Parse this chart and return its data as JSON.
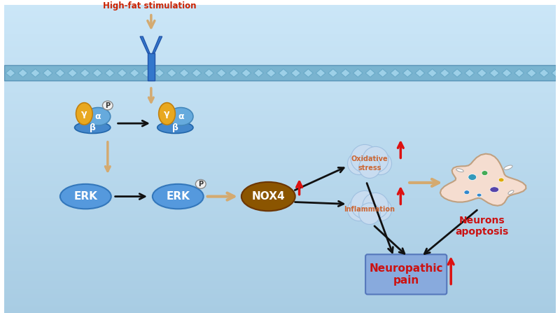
{
  "bg_color": "#c5dff0",
  "membrane_color": "#7ab4d0",
  "membrane_edge": "#5a94b8",
  "diamond_color": "#9dd0e8",
  "diamond_edge": "#6aaac8",
  "receptor_color": "#3377cc",
  "receptor_edge": "#2255aa",
  "ampk_base_color": "#4488cc",
  "ampk_base_edge": "#2266aa",
  "ampk_alpha_color": "#66aadd",
  "ampk_alpha_edge": "#4488bb",
  "ampk_gamma_color": "#e8a820",
  "ampk_gamma_edge": "#c08010",
  "p_circle_color": "#f0f0f0",
  "p_circle_edge": "#888888",
  "erk_color": "#5599dd",
  "erk_edge": "#3377bb",
  "nox4_color": "#8B5500",
  "nox4_edge": "#6B3500",
  "cloud_color": "#c8dcf0",
  "cloud_border": "#a0c0e0",
  "neuron_color": "#f5ddd0",
  "neuron_edge": "#c0a080",
  "neuropathic_box_color": "#88aadd",
  "neuropathic_box_edge": "#5577bb",
  "arrow_tan": "#d4aa70",
  "arrow_black": "#111111",
  "arrow_red": "#dd1111",
  "title_color": "#cc2200",
  "oxidative_text_color": "#cc6633",
  "inflammation_text_color": "#cc6633",
  "neuropathic_text_color": "#cc1111",
  "neurons_text_color": "#cc1111",
  "high_fat_text": "High-fat stimulation",
  "p_label": "P",
  "erk_label": "ERK",
  "nox4_label": "NOX4",
  "oxidative_label": "Oxidative\nstress",
  "inflammation_label": "Inflammation",
  "neuropathic_label": "Neuropathic\npain",
  "neurons_label": "Neurons\napoptosis",
  "alpha_label": "α",
  "beta_label": "β",
  "gamma_label": "γ"
}
